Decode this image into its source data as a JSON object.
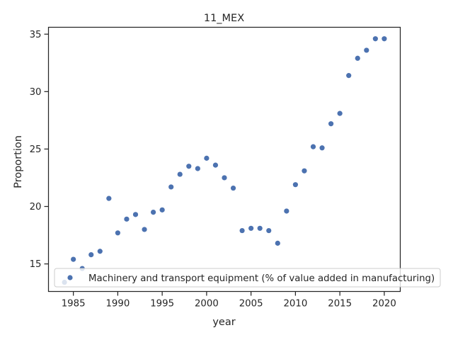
{
  "chart_data": {
    "type": "scatter",
    "title": "11_MEX",
    "xlabel": "year",
    "ylabel": "Proportion",
    "xlim": [
      1982.2,
      2021.8
    ],
    "ylim": [
      12.6,
      35.6
    ],
    "xticks": [
      1985,
      1990,
      1995,
      2000,
      2005,
      2010,
      2015,
      2020
    ],
    "yticks": [
      15,
      20,
      25,
      30,
      35
    ],
    "grid": false,
    "legend_position": "lower-right",
    "marker_color": "#4c72b0",
    "series": [
      {
        "name": "Machinery and transport equipment (% of value added in manufacturing)",
        "x": [
          1984,
          1985,
          1986,
          1987,
          1988,
          1989,
          1990,
          1991,
          1992,
          1993,
          1994,
          1995,
          1996,
          1997,
          1998,
          1999,
          2000,
          2001,
          2002,
          2003,
          2004,
          2005,
          2006,
          2007,
          2008,
          2009,
          2010,
          2011,
          2012,
          2013,
          2014,
          2015,
          2016,
          2017,
          2018,
          2019,
          2020
        ],
        "y": [
          13.4,
          15.4,
          14.6,
          15.8,
          16.1,
          20.7,
          17.7,
          18.9,
          19.3,
          18.0,
          19.5,
          19.7,
          21.7,
          22.8,
          23.5,
          23.3,
          24.2,
          23.6,
          22.5,
          21.6,
          17.9,
          18.1,
          18.1,
          17.9,
          16.8,
          19.6,
          21.9,
          23.1,
          25.2,
          25.1,
          27.2,
          28.1,
          31.4,
          32.9,
          33.6,
          34.6,
          34.6
        ]
      }
    ]
  }
}
